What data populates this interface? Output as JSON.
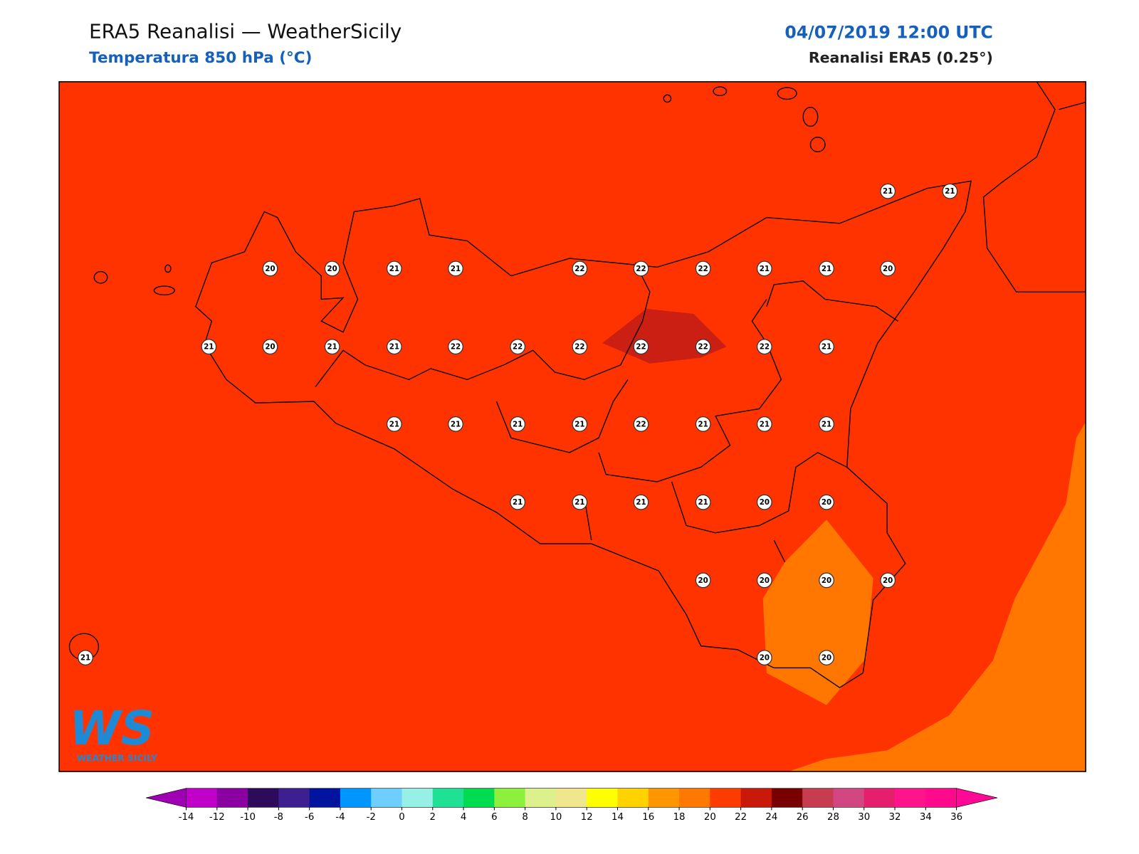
{
  "header": {
    "title": "ERA5 Reanalisi — WeatherSicily",
    "subtitle": "Temperatura 850 hPa (°C)",
    "date": "04/07/2019 12:00 UTC",
    "source": "Reanalisi ERA5 (0.25°)"
  },
  "logo": {
    "mark": "WS",
    "name": "WEATHER SICILY"
  },
  "stations": [
    21,
    21,
    20,
    20,
    21,
    21,
    22,
    22,
    22,
    21,
    21,
    20,
    21,
    20,
    21,
    21,
    22,
    22,
    22,
    22,
    22,
    22,
    21,
    21,
    21,
    21,
    21,
    22,
    21,
    21,
    21,
    21,
    21,
    21,
    21,
    20,
    20,
    20,
    20,
    20,
    20,
    21,
    20,
    20
  ],
  "colorbar": {
    "ticks": [
      -14,
      -12,
      -10,
      -8,
      -6,
      -4,
      -2,
      0,
      2,
      4,
      6,
      8,
      10,
      12,
      14,
      16,
      18,
      20,
      22,
      24,
      26,
      28,
      30,
      32,
      34,
      36
    ],
    "colors": [
      "#c000c8",
      "#8a00a0",
      "#2e0a5a",
      "#3c2090",
      "#0014a0",
      "#0096ff",
      "#6ecfff",
      "#96f0e6",
      "#1ee196",
      "#00dc50",
      "#8cf03c",
      "#dcf08c",
      "#f0e68c",
      "#ffff00",
      "#ffd200",
      "#ff9600",
      "#ff7800",
      "#ff3c00",
      "#c8190a",
      "#780000",
      "#c83c50",
      "#d24682",
      "#e61e6e",
      "#ff148c",
      "#ff0a8c"
    ],
    "under": "#a000b4",
    "over": "#ff0a96"
  }
}
